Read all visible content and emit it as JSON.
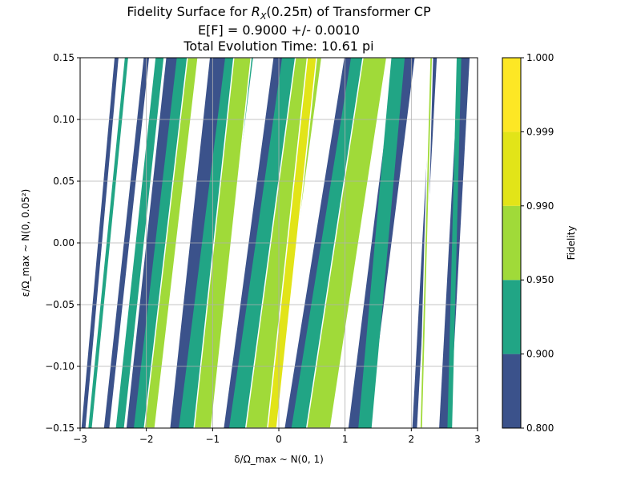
{
  "chart_data": {
    "type": "heatmap",
    "title_prefix": "Fidelity Surface for ",
    "title_math": "R",
    "title_math_sub": "X",
    "title_suffix": "(0.25π) of Transformer CP",
    "subtitle1": "E[F] = 0.9000 +/- 0.0010",
    "subtitle2": "Total Evolution Time: 10.61 pi",
    "xlabel": "δ/Ω_max ~ N(0, 1)",
    "ylabel": "ε/Ω_max ~ N(0, 0.05²)",
    "xlim": [
      -3,
      3
    ],
    "ylim": [
      -0.15,
      0.15
    ],
    "x_ticks": [
      "−3",
      "−2",
      "−1",
      "0",
      "1",
      "2",
      "3"
    ],
    "x_tick_values": [
      -3,
      -2,
      -1,
      0,
      1,
      2,
      3
    ],
    "y_ticks": [
      "−0.15",
      "−0.10",
      "−0.05",
      "0.00",
      "0.05",
      "0.10",
      "0.15"
    ],
    "y_tick_values": [
      -0.15,
      -0.1,
      -0.05,
      0.0,
      0.05,
      0.1,
      0.15
    ],
    "grid": true,
    "colorbar": {
      "label": "Fidelity",
      "levels": [
        "0.800",
        "0.900",
        "0.950",
        "0.990",
        "0.999",
        "1.000"
      ],
      "colors": [
        "#3b528b",
        "#21a585",
        "#a0da39",
        "#e2e418",
        "#fde725"
      ]
    },
    "contour_line_levels": [
      0.95,
      0.99
    ],
    "bands": [
      {
        "x0": -2.95,
        "x1": -2.45,
        "width": 0.06,
        "level": 0
      },
      {
        "x0": -2.85,
        "x1": -2.3,
        "width": 0.05,
        "level": 1
      },
      {
        "x0": -2.6,
        "x1": -2.0,
        "width": 0.08,
        "level": 0
      },
      {
        "x0": -2.4,
        "x1": -1.8,
        "width": 0.12,
        "level": 1
      },
      {
        "x0": -2.2,
        "x1": -1.6,
        "width": 0.2,
        "level": 0
      },
      {
        "x0": -2.05,
        "x1": -1.4,
        "width": 0.28,
        "level": 1
      },
      {
        "x0": -1.95,
        "x1": -1.3,
        "width": 0.16,
        "level": 2
      },
      {
        "x0": -1.5,
        "x1": -0.9,
        "width": 0.28,
        "level": 0
      },
      {
        "x0": -1.3,
        "x1": -0.6,
        "width": 0.42,
        "level": 1
      },
      {
        "x0": -1.15,
        "x1": -0.55,
        "width": 0.26,
        "level": 2
      },
      {
        "x0": -0.65,
        "x1": 0.1,
        "width": 0.36,
        "level": 0
      },
      {
        "x0": -0.5,
        "x1": 0.3,
        "width": 0.5,
        "level": 1
      },
      {
        "x0": -0.3,
        "x1": 0.45,
        "width": 0.4,
        "level": 2
      },
      {
        "x0": -0.1,
        "x1": 0.5,
        "width": 0.14,
        "level": 3
      },
      {
        "x0": 0.3,
        "x1": 1.2,
        "width": 0.42,
        "level": 0
      },
      {
        "x0": 0.45,
        "x1": 1.35,
        "width": 0.52,
        "level": 1
      },
      {
        "x0": 0.6,
        "x1": 1.45,
        "width": 0.36,
        "level": 2
      },
      {
        "x0": 1.2,
        "x1": 1.9,
        "width": 0.3,
        "level": 0
      },
      {
        "x0": 1.3,
        "x1": 1.8,
        "width": 0.2,
        "level": 1
      },
      {
        "x0": 2.05,
        "x1": 2.35,
        "width": 0.07,
        "level": 0
      },
      {
        "x0": 2.15,
        "x1": 2.3,
        "width": 0.04,
        "level": 2
      },
      {
        "x0": 2.5,
        "x1": 2.8,
        "width": 0.16,
        "level": 0
      },
      {
        "x0": 2.58,
        "x1": 2.72,
        "width": 0.07,
        "level": 1
      }
    ]
  }
}
